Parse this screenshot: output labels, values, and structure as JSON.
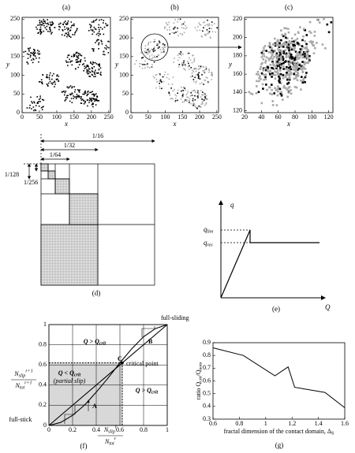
{
  "chart_data": [
    {
      "type": "map",
      "label": "(a)",
      "xlabel": "x",
      "ylabel": "y",
      "xlim": [
        0,
        255
      ],
      "ylim": [
        0,
        255
      ],
      "xticks": [
        0,
        50,
        100,
        150,
        200,
        250
      ],
      "yticks": [
        0,
        50,
        100,
        150,
        200,
        250
      ]
    },
    {
      "type": "map",
      "label": "(b)",
      "xlabel": "x",
      "ylabel": "y",
      "xlim": [
        0,
        255
      ],
      "ylim": [
        0,
        255
      ],
      "xticks": [
        0,
        50,
        100,
        150,
        200,
        250
      ],
      "yticks": [
        0,
        50,
        100,
        150,
        200,
        250
      ]
    },
    {
      "type": "map",
      "label": "(c)",
      "xlabel": "x",
      "ylabel": "y",
      "xlim": [
        20,
        125
      ],
      "ylim": [
        118,
        222
      ],
      "xticks": [
        20,
        40,
        60,
        80,
        100,
        120
      ],
      "yticks": [
        120,
        140,
        160,
        180,
        200,
        220
      ]
    },
    {
      "type": "curve",
      "label": "(f)",
      "xlabel": {
        "num": {
          "main": "N",
          "sub": "slip",
          "sup": "r"
        },
        "den": {
          "main": "N",
          "sub": "tot",
          "sup": "r"
        }
      },
      "ylabel": {
        "num": {
          "main": "N",
          "sub": "slip",
          "sup": "r+1"
        },
        "den": {
          "main": "N",
          "sub": "tot",
          "sup": "r+1"
        }
      },
      "xlim": [
        0,
        1
      ],
      "ylim": [
        0,
        1
      ],
      "xticks": [
        0,
        0.2,
        0.4,
        0.6,
        0.8,
        1
      ],
      "yticks": [
        0,
        0.2,
        0.4,
        0.6,
        0.8,
        1
      ],
      "grid": true,
      "series": [
        {
          "color": "#000",
          "x": [
            0,
            0.1,
            0.2,
            0.3,
            0.4,
            0.5,
            0.6,
            0.7,
            0.8,
            0.9,
            1
          ],
          "values": [
            0,
            0.03,
            0.1,
            0.2,
            0.33,
            0.47,
            0.62,
            0.76,
            0.88,
            0.96,
            1
          ]
        },
        {
          "color": "#000",
          "x": [
            0,
            1
          ],
          "values": [
            0,
            1
          ]
        }
      ],
      "critical_point": 0.62,
      "regions": [
        {
          "main": "Q > Q",
          "sub": "crit"
        },
        {
          "main": "Q < Q",
          "sub": "crit"
        },
        {
          "main": "Q > Q",
          "sub": "crit"
        }
      ],
      "annotations": [
        "full-sliding",
        "full-stick",
        "critical point",
        "(partial slip)",
        "A",
        "B",
        "C"
      ]
    },
    {
      "type": "line",
      "label": "(g)",
      "xlabel": {
        "main": "fractal dimension of the contact domain, Δ",
        "sub": "S"
      },
      "ylabel": [
        {
          "main": "ratio Q",
          "sub": "crit"
        },
        {
          "main": "/Q",
          "sub": "nom"
        }
      ],
      "x": [
        0.6,
        0.83,
        1.07,
        1.17,
        1.22,
        1.45,
        1.6
      ],
      "values": [
        0.86,
        0.8,
        0.64,
        0.71,
        0.55,
        0.51,
        0.39
      ],
      "color": "#000",
      "xlim": [
        0.6,
        1.6
      ],
      "ylim": [
        0.3,
        0.9
      ],
      "xticks": [
        0.6,
        0.8,
        1,
        1.2,
        1.4,
        1.6
      ],
      "yticks": [
        0.3,
        0.4,
        0.5,
        0.6,
        0.7,
        0.8,
        0.9
      ]
    }
  ],
  "diagrams": {
    "d": {
      "label": "(d)",
      "fractions": [
        "1/16",
        "1/32",
        "1/64",
        "1/128",
        "1/256"
      ]
    },
    "e": {
      "label": "(e)",
      "y": "q",
      "x": "Q",
      "qlim": {
        "main": "q",
        "sub": "lim"
      },
      "qres": {
        "main": "q",
        "sub": "res"
      }
    }
  }
}
